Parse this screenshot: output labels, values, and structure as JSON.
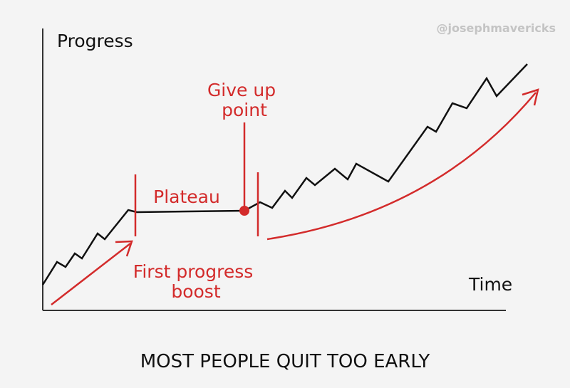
{
  "header": {
    "watermark": "@josephmavericks"
  },
  "axes": {
    "y_label": "Progress",
    "x_label": "Time"
  },
  "annotations": {
    "give_up_point": [
      "Give up",
      "point"
    ],
    "plateau": "Plateau",
    "first_progress_boost": [
      "First progress",
      "boost"
    ]
  },
  "caption": "MOST PEOPLE QUIT TOO EARLY"
}
